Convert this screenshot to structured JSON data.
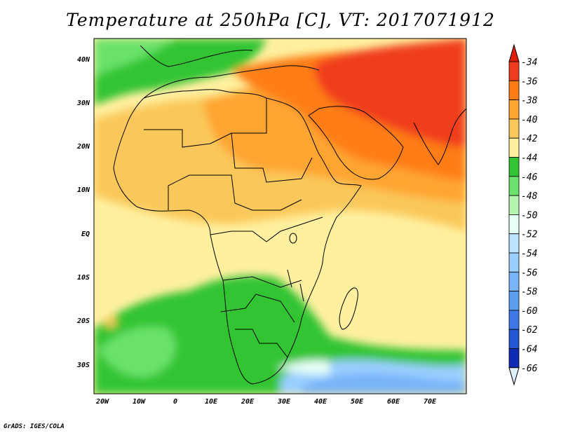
{
  "title": "Temperature at 250hPa [C], VT: 2017071912",
  "credit": "GrADS: IGES/COLA",
  "lat_labels": [
    "40N",
    "30N",
    "20N",
    "10N",
    "EQ",
    "10S",
    "20S",
    "30S"
  ],
  "lon_labels": [
    "20W",
    "10W",
    "0",
    "10E",
    "20E",
    "30E",
    "40E",
    "50E",
    "60E",
    "70E"
  ],
  "colorbar": {
    "labels": [
      "-34",
      "-36",
      "-38",
      "-40",
      "-42",
      "-44",
      "-46",
      "-48",
      "-50",
      "-52",
      "-54",
      "-56",
      "-58",
      "-60",
      "-62",
      "-64",
      "-66"
    ],
    "colors": [
      "#f03c1e",
      "#ff7d14",
      "#ffa532",
      "#fac85a",
      "#fff0a0",
      "#33c433",
      "#6be26b",
      "#b6f5b0",
      "#e6fff5",
      "#bce6ff",
      "#9acfff",
      "#78b4f8",
      "#5a9ef0",
      "#3c78e6",
      "#2356d2",
      "#0f2ab4",
      "#051050"
    ],
    "top_color": "#e01e0a",
    "bottom_color": "#ddeeff"
  },
  "legend": {
    "temp_name": "Temperature",
    "level": "250hPa",
    "unit": "C",
    "valid_time": "2017071912"
  }
}
